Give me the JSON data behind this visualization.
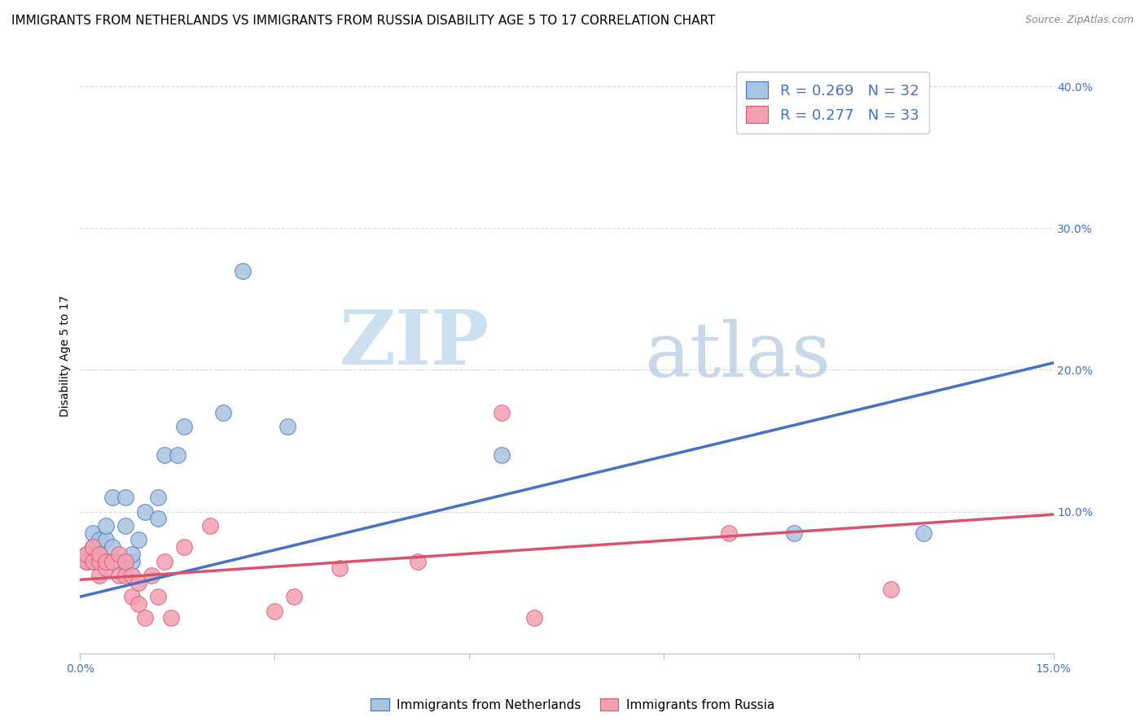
{
  "title": "IMMIGRANTS FROM NETHERLANDS VS IMMIGRANTS FROM RUSSIA DISABILITY AGE 5 TO 17 CORRELATION CHART",
  "source": "Source: ZipAtlas.com",
  "ylabel": "Disability Age 5 to 17",
  "xlim": [
    0.0,
    0.15
  ],
  "ylim": [
    0.0,
    0.42
  ],
  "xticks": [
    0.0,
    0.03,
    0.06,
    0.09,
    0.12,
    0.15
  ],
  "xticklabels": [
    "0.0%",
    "",
    "",
    "",
    "",
    "15.0%"
  ],
  "yticks_right": [
    0.1,
    0.2,
    0.3,
    0.4
  ],
  "yticklabels_right": [
    "10.0%",
    "20.0%",
    "30.0%",
    "40.0%"
  ],
  "netherlands_color": "#a8c4e0",
  "russia_color": "#f4a0b0",
  "netherlands_line_color": "#4472c4",
  "russia_line_color": "#d9526e",
  "legend_text_color": "#4472c4",
  "watermark_zip": "ZIP",
  "watermark_atlas": "atlas",
  "netherlands_x": [
    0.001,
    0.001,
    0.002,
    0.002,
    0.002,
    0.003,
    0.003,
    0.003,
    0.004,
    0.004,
    0.004,
    0.005,
    0.005,
    0.005,
    0.006,
    0.007,
    0.007,
    0.008,
    0.008,
    0.009,
    0.01,
    0.012,
    0.012,
    0.013,
    0.015,
    0.016,
    0.022,
    0.025,
    0.032,
    0.065,
    0.11,
    0.13
  ],
  "netherlands_y": [
    0.065,
    0.07,
    0.065,
    0.075,
    0.085,
    0.065,
    0.07,
    0.08,
    0.065,
    0.08,
    0.09,
    0.065,
    0.075,
    0.11,
    0.065,
    0.09,
    0.11,
    0.065,
    0.07,
    0.08,
    0.1,
    0.095,
    0.11,
    0.14,
    0.14,
    0.16,
    0.17,
    0.27,
    0.16,
    0.14,
    0.085,
    0.085
  ],
  "russia_x": [
    0.001,
    0.001,
    0.002,
    0.002,
    0.003,
    0.003,
    0.003,
    0.004,
    0.004,
    0.005,
    0.006,
    0.006,
    0.007,
    0.007,
    0.008,
    0.008,
    0.009,
    0.009,
    0.01,
    0.011,
    0.012,
    0.013,
    0.014,
    0.016,
    0.02,
    0.03,
    0.033,
    0.04,
    0.052,
    0.065,
    0.07,
    0.1,
    0.125
  ],
  "russia_y": [
    0.065,
    0.07,
    0.065,
    0.075,
    0.055,
    0.065,
    0.07,
    0.06,
    0.065,
    0.065,
    0.055,
    0.07,
    0.055,
    0.065,
    0.04,
    0.055,
    0.035,
    0.05,
    0.025,
    0.055,
    0.04,
    0.065,
    0.025,
    0.075,
    0.09,
    0.03,
    0.04,
    0.06,
    0.065,
    0.17,
    0.025,
    0.085,
    0.045
  ],
  "netherlands_trend_x": [
    0.0,
    0.15
  ],
  "netherlands_trend_y": [
    0.04,
    0.205
  ],
  "russia_trend_x": [
    0.0,
    0.15
  ],
  "russia_trend_y": [
    0.052,
    0.098
  ],
  "background_color": "#ffffff",
  "grid_color": "#d8d8d8",
  "title_fontsize": 11,
  "axis_label_fontsize": 10,
  "tick_fontsize": 10,
  "legend_label1": "R = 0.269   N = 32",
  "legend_label2": "R = 0.277   N = 33",
  "bottom_legend_label1": "Immigrants from Netherlands",
  "bottom_legend_label2": "Immigrants from Russia"
}
